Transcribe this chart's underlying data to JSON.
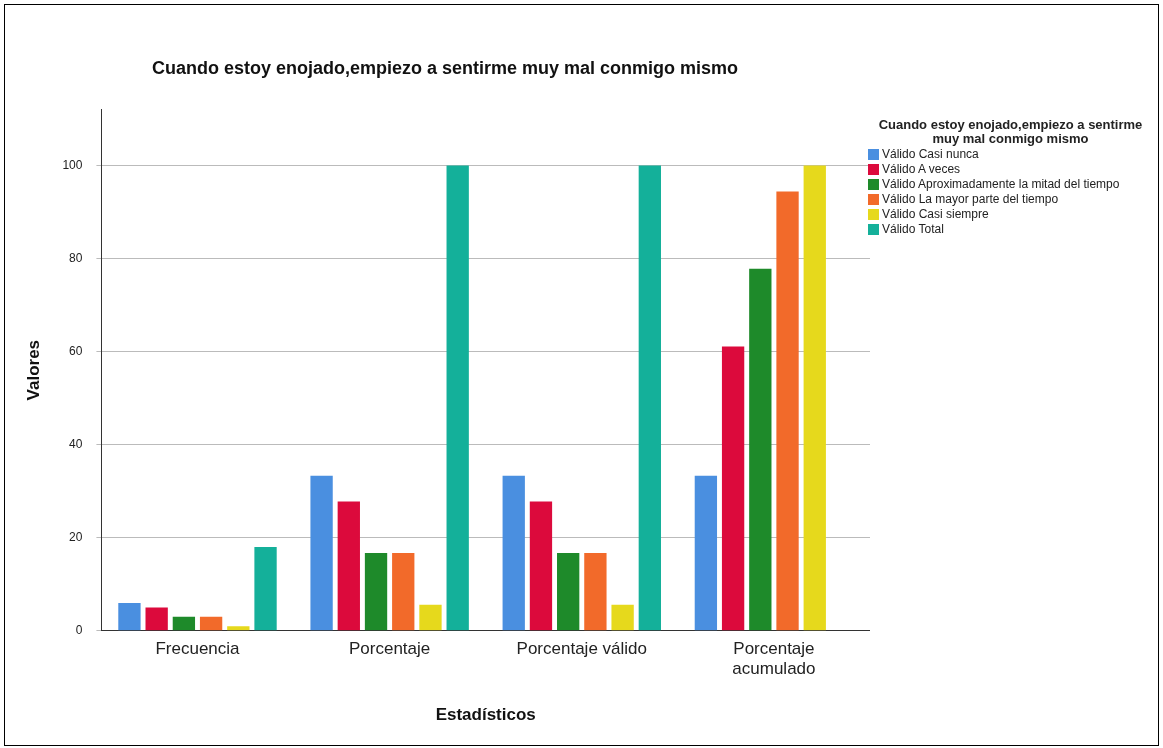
{
  "chart_data": {
    "type": "bar",
    "title": "Cuando estoy enojado,empiezo a sentirme muy mal conmigo mismo",
    "xlabel": "Estadísticos",
    "ylabel": "Valores",
    "legend_title": "Cuando estoy enojado,empiezo a sentirme muy mal conmigo mismo",
    "categories": [
      "Frecuencia",
      "Porcentaje",
      "Porcentaje válido",
      "Porcentaje acumulado"
    ],
    "series": [
      {
        "name": "Válido Casi nunca",
        "color": "#4a8fe0",
        "values": [
          6,
          33.3,
          33.3,
          33.3
        ]
      },
      {
        "name": "Válido A veces",
        "color": "#dc0a3c",
        "values": [
          5,
          27.8,
          27.8,
          61.1
        ]
      },
      {
        "name": "Válido Aproximadamente la mitad del tiempo",
        "color": "#1e8a2a",
        "values": [
          3,
          16.7,
          16.7,
          77.8
        ]
      },
      {
        "name": "Válido La mayor parte del tiempo",
        "color": "#f26a2a",
        "values": [
          3,
          16.7,
          16.7,
          94.4
        ]
      },
      {
        "name": "Válido Casi siempre",
        "color": "#e6d91c",
        "values": [
          1,
          5.6,
          5.6,
          100
        ]
      },
      {
        "name": "Válido Total",
        "color": "#14b09a",
        "values": [
          18,
          100,
          100,
          null
        ]
      }
    ],
    "ylim": [
      0,
      112
    ],
    "yticks": [
      0,
      20,
      40,
      60,
      80,
      100
    ],
    "grid": "y",
    "legend": "right"
  }
}
